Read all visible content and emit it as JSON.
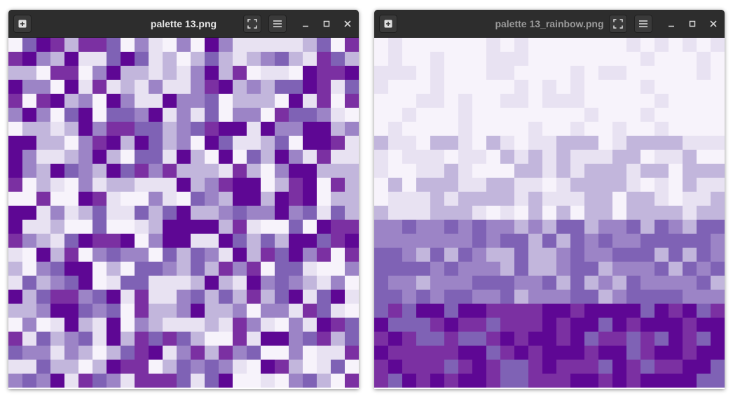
{
  "windows": [
    {
      "title": "palette 13.png",
      "image": {
        "description_name": "random-purple-pixel-grid",
        "grid_cols": 25,
        "grid_rows": 25
      }
    },
    {
      "title": "palette 13_rainbow.png",
      "image": {
        "description_name": "sorted-purple-pixel-grid",
        "grid_cols": 25,
        "grid_rows": 25
      }
    }
  ],
  "icons": {
    "new": "plus-box-icon",
    "fullscreen": "fullscreen-icon",
    "menu": "hamburger-menu-icon",
    "minimize": "minimize-icon",
    "maximize": "maximize-icon",
    "close": "close-icon"
  },
  "palette": [
    "#f7f3fb",
    "#e8e2f2",
    "#c2b6dc",
    "#9c84c6",
    "#7f62b5",
    "#7b30a2",
    "#5e0794"
  ],
  "colors": {
    "titlebar_bg": "#2d2d2d",
    "title_active": "#e6e6e6",
    "title_inactive": "#9a9a9a",
    "icon": "#d8d8d8"
  }
}
